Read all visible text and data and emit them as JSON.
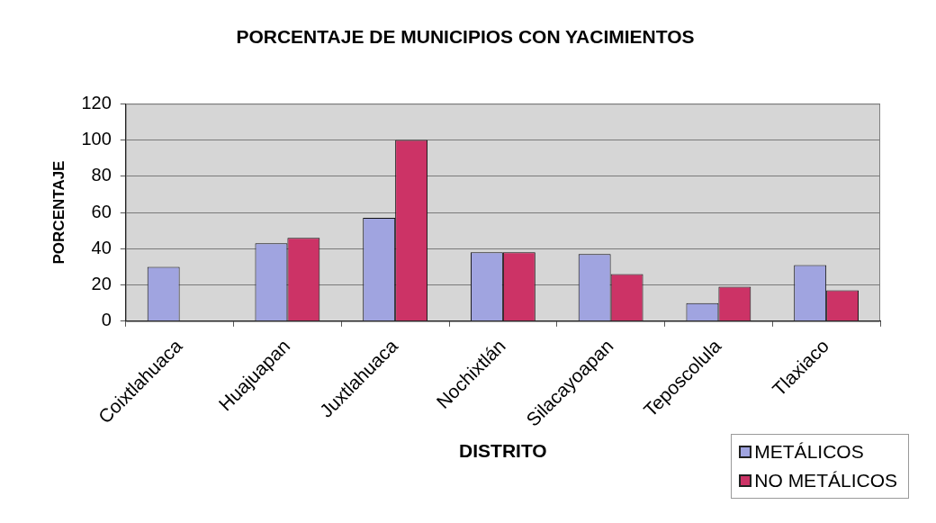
{
  "chart_data": {
    "type": "bar",
    "title": "PORCENTAJE DE MUNICIPIOS CON YACIMIENTOS",
    "xlabel": "DISTRITO",
    "ylabel": "PORCENTAJE",
    "categories": [
      "Coixtlahuaca",
      "Huajuapan",
      "Juxtlahuaca",
      "Nochixtlán",
      "Silacayoapan",
      "Teposcolula",
      "Tlaxiaco"
    ],
    "series": [
      {
        "name": "METÁLICOS",
        "color": "#a0a4e0",
        "values": [
          30,
          43,
          57,
          38,
          37,
          10,
          31
        ]
      },
      {
        "name": "NO METÁLICOS",
        "color": "#cc3366",
        "values": [
          0,
          46,
          100,
          38,
          26,
          19,
          17
        ]
      }
    ],
    "ylim": [
      0,
      120
    ],
    "yticks": [
      0,
      20,
      40,
      60,
      80,
      100,
      120
    ],
    "grid": "y",
    "legend": "bottom right"
  }
}
